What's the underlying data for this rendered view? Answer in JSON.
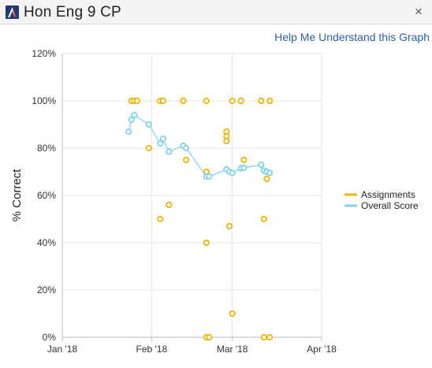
{
  "window": {
    "title": "Hon Eng 9 CP",
    "logo_icon": "app-logo-icon",
    "close_glyph": "×"
  },
  "help_link": "Help Me Understand this Graph",
  "colors": {
    "assignments": "#f5b400",
    "overall": "#7dd3ec",
    "grid": "#e3e3e3",
    "axis": "#bdbdbd"
  },
  "chart_data": {
    "type": "scatter",
    "ylabel": "% Correct",
    "xlabel": "",
    "ylim": [
      0,
      1.2
    ],
    "y_ticks": [
      0,
      0.2,
      0.4,
      0.6,
      0.8,
      1.0,
      1.2
    ],
    "y_tick_labels": [
      "0%",
      "20%",
      "40%",
      "60%",
      "80%",
      "100%",
      "120%"
    ],
    "xlim": [
      "2018-01-01",
      "2018-04-01"
    ],
    "x_ticks": [
      "2018-01-01",
      "2018-02-01",
      "2018-03-01",
      "2018-04-01"
    ],
    "x_tick_labels": [
      "Jan '18",
      "Feb '18",
      "Mar '18",
      "Apr '18"
    ],
    "grid": true,
    "legend_position": "right",
    "series": [
      {
        "name": "Assignments",
        "mode": "markers",
        "points": [
          {
            "x": "2018-01-25",
            "y": 1.0
          },
          {
            "x": "2018-01-26",
            "y": 1.0
          },
          {
            "x": "2018-01-27",
            "y": 1.0
          },
          {
            "x": "2018-01-31",
            "y": 0.8
          },
          {
            "x": "2018-02-04",
            "y": 1.0
          },
          {
            "x": "2018-02-04",
            "y": 0.5
          },
          {
            "x": "2018-02-05",
            "y": 1.0
          },
          {
            "x": "2018-02-07",
            "y": 0.56
          },
          {
            "x": "2018-02-12",
            "y": 1.0
          },
          {
            "x": "2018-02-13",
            "y": 0.75
          },
          {
            "x": "2018-02-20",
            "y": 1.0
          },
          {
            "x": "2018-02-20",
            "y": 0.7
          },
          {
            "x": "2018-02-20",
            "y": 0.4
          },
          {
            "x": "2018-02-20",
            "y": 0.0
          },
          {
            "x": "2018-02-21",
            "y": 0.0
          },
          {
            "x": "2018-02-27",
            "y": 0.87
          },
          {
            "x": "2018-02-27",
            "y": 0.85
          },
          {
            "x": "2018-02-27",
            "y": 0.83
          },
          {
            "x": "2018-02-28",
            "y": 0.47
          },
          {
            "x": "2018-03-01",
            "y": 1.0
          },
          {
            "x": "2018-03-01",
            "y": 0.1
          },
          {
            "x": "2018-03-04",
            "y": 1.0
          },
          {
            "x": "2018-03-05",
            "y": 0.75
          },
          {
            "x": "2018-03-11",
            "y": 1.0
          },
          {
            "x": "2018-03-12",
            "y": 0.5
          },
          {
            "x": "2018-03-12",
            "y": 0.0
          },
          {
            "x": "2018-03-13",
            "y": 0.67
          },
          {
            "x": "2018-03-14",
            "y": 1.0
          },
          {
            "x": "2018-03-14",
            "y": 0.0
          }
        ]
      },
      {
        "name": "Overall Score",
        "mode": "lines+markers",
        "points": [
          {
            "x": "2018-01-24",
            "y": 0.87
          },
          {
            "x": "2018-01-25",
            "y": 0.92
          },
          {
            "x": "2018-01-26",
            "y": 0.94
          },
          {
            "x": "2018-01-31",
            "y": 0.9
          },
          {
            "x": "2018-02-04",
            "y": 0.82
          },
          {
            "x": "2018-02-05",
            "y": 0.84
          },
          {
            "x": "2018-02-07",
            "y": 0.785
          },
          {
            "x": "2018-02-12",
            "y": 0.81
          },
          {
            "x": "2018-02-13",
            "y": 0.8
          },
          {
            "x": "2018-02-20",
            "y": 0.68
          },
          {
            "x": "2018-02-21",
            "y": 0.68
          },
          {
            "x": "2018-02-27",
            "y": 0.71
          },
          {
            "x": "2018-02-28",
            "y": 0.7
          },
          {
            "x": "2018-03-01",
            "y": 0.695
          },
          {
            "x": "2018-03-04",
            "y": 0.715
          },
          {
            "x": "2018-03-05",
            "y": 0.717
          },
          {
            "x": "2018-03-11",
            "y": 0.73
          },
          {
            "x": "2018-03-12",
            "y": 0.705
          },
          {
            "x": "2018-03-13",
            "y": 0.7
          },
          {
            "x": "2018-03-14",
            "y": 0.695
          }
        ]
      }
    ]
  }
}
